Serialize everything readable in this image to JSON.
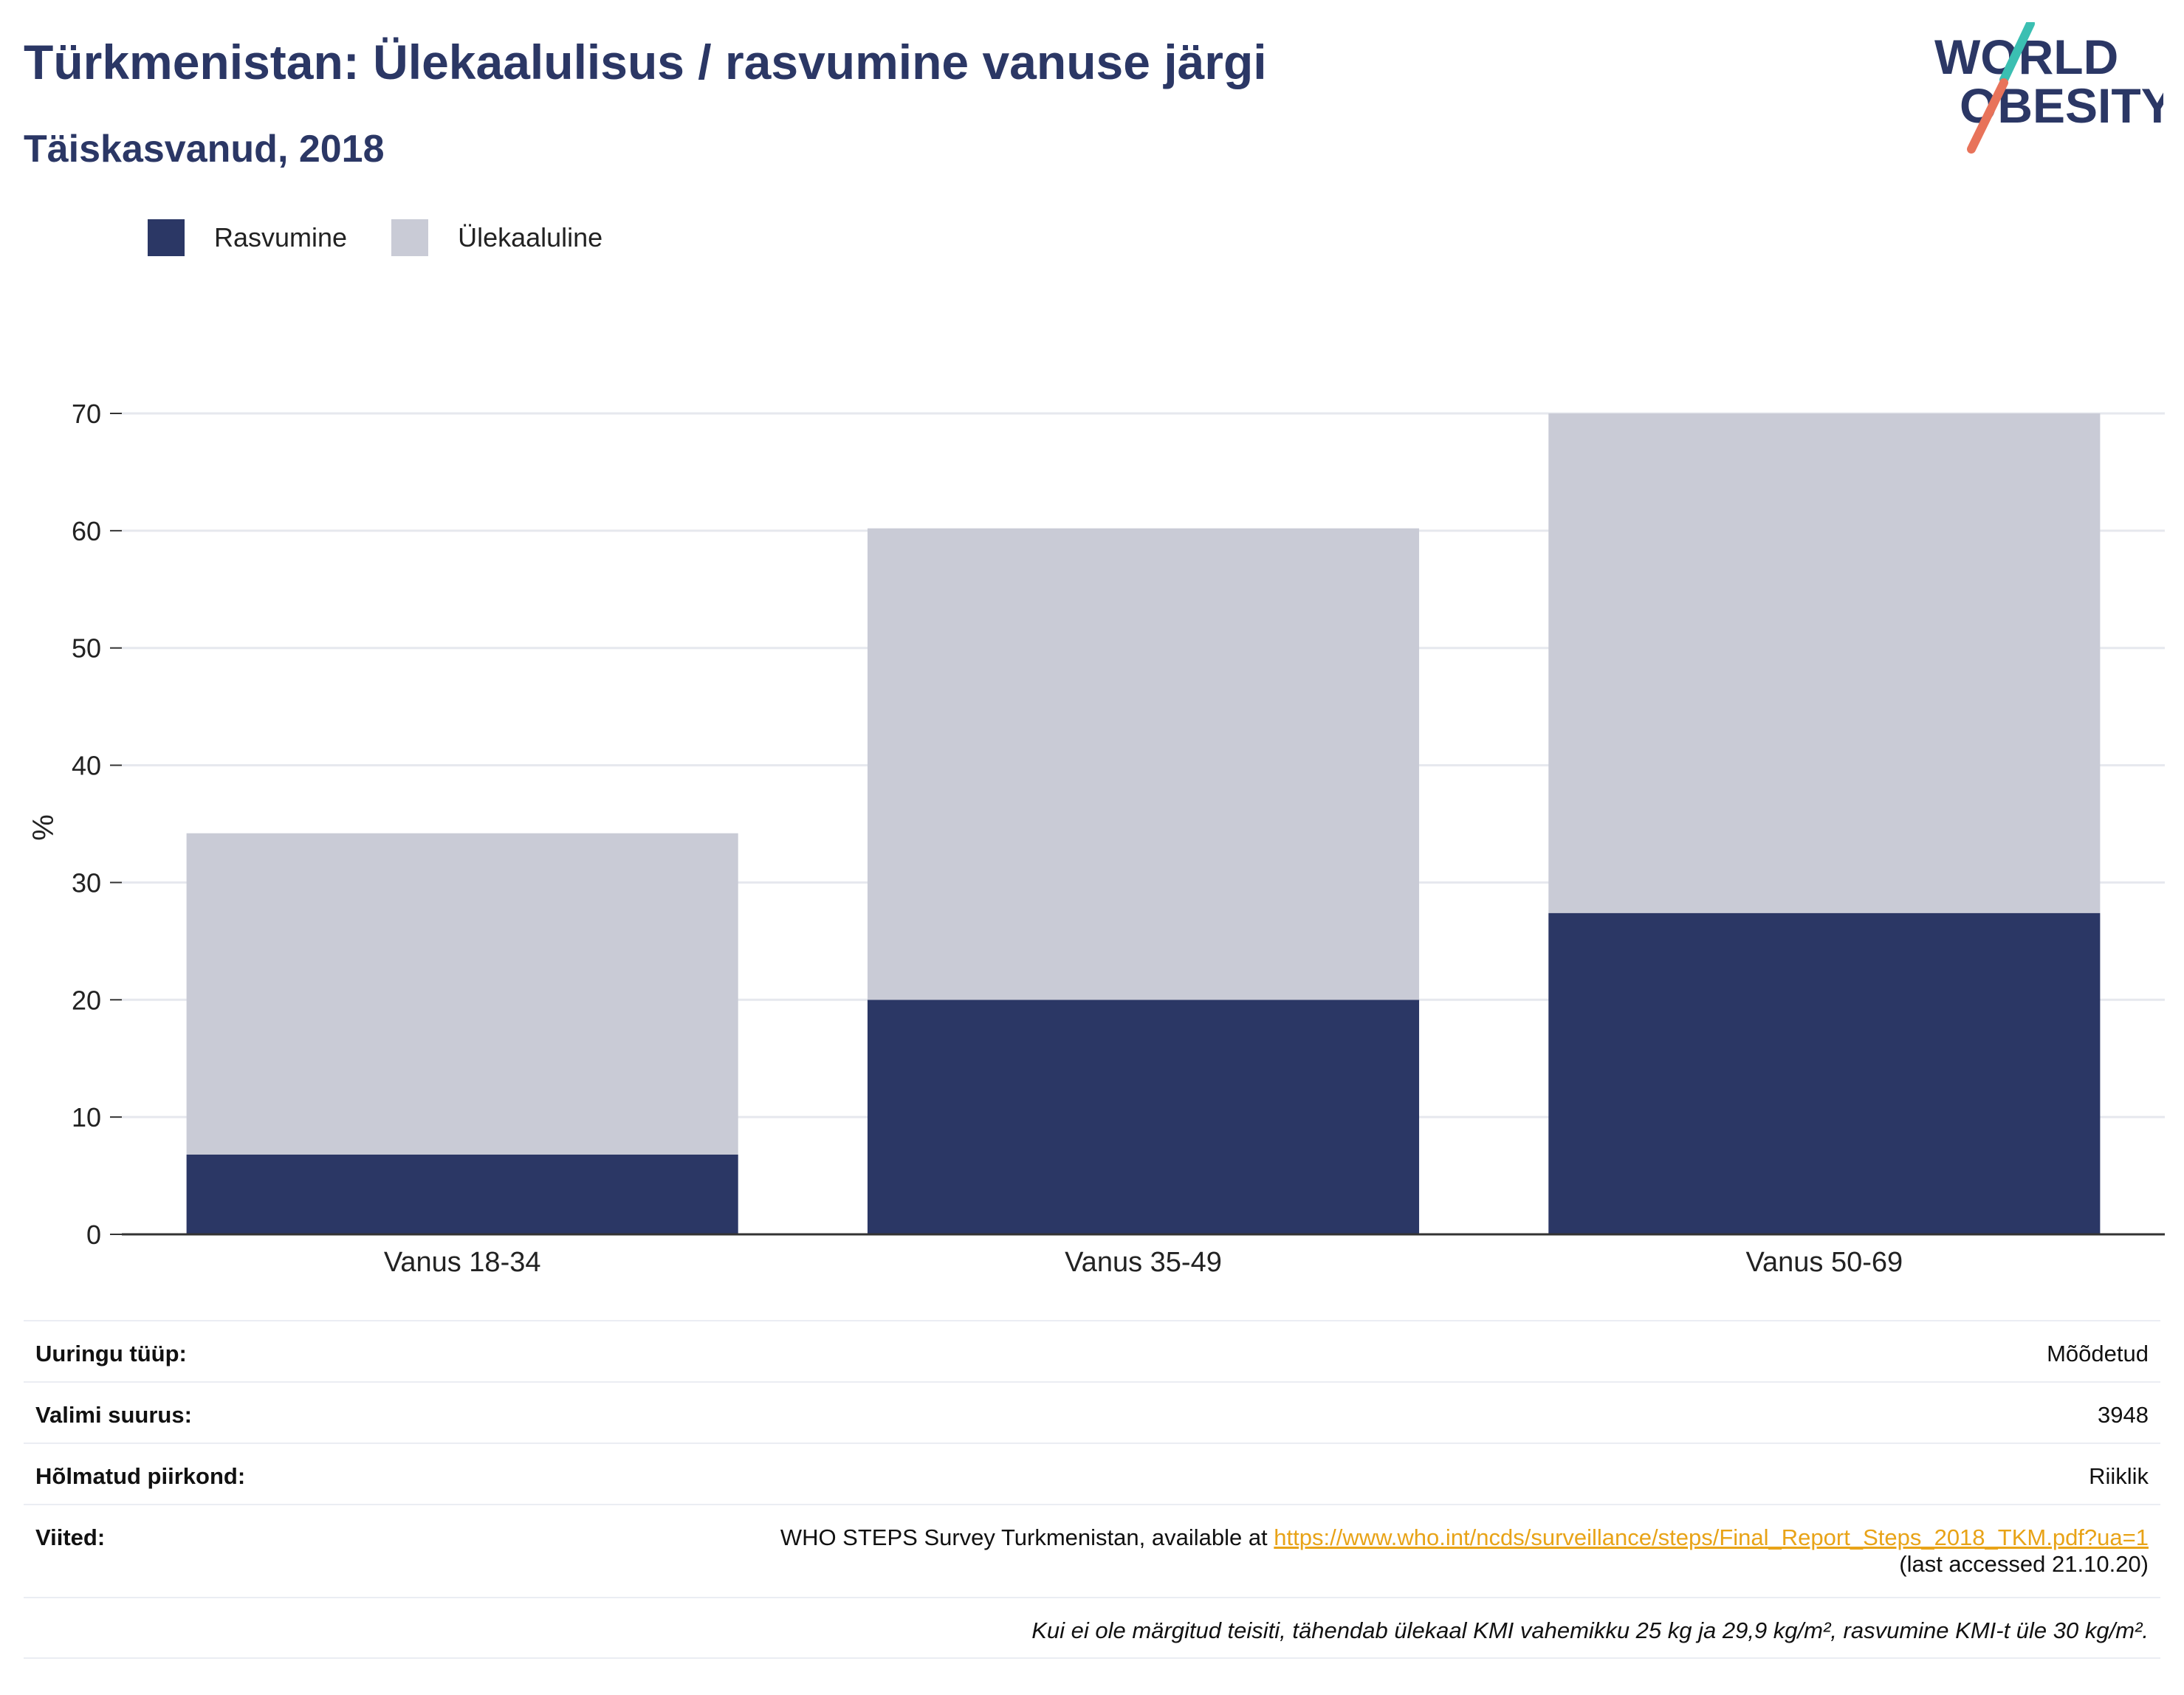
{
  "header": {
    "title": "Türkmenistan: Ülekaalulisus / rasvumine vanuse järgi",
    "subtitle": "Täiskasvanud, 2018"
  },
  "logo": {
    "line1": "WORLD",
    "line2": "OBESITY",
    "accent_top": "#3bbfb2",
    "accent_bottom": "#e8735a"
  },
  "colors": {
    "obesity": "#2b3765",
    "overweight": "#c9cbd6",
    "text": "#2b3765",
    "link": "#e8a317"
  },
  "chart_data": {
    "type": "bar",
    "stacked": true,
    "categories": [
      "Vanus 18-34",
      "Vanus 35-49",
      "Vanus 50-69"
    ],
    "series": [
      {
        "name": "Rasvumine",
        "values": [
          6.8,
          20.0,
          27.4
        ]
      },
      {
        "name": "Ülekaaluline",
        "values": [
          27.4,
          40.2,
          42.6
        ]
      }
    ],
    "ylabel": "%",
    "ylim": [
      0,
      70
    ],
    "yticks": [
      0,
      10,
      20,
      30,
      40,
      50,
      60,
      70
    ],
    "grid": true,
    "legend_position": "top-left"
  },
  "meta": {
    "survey_type_label": "Uuringu tüüp:",
    "survey_type_value": "Mõõdetud",
    "sample_size_label": "Valimi suurus:",
    "sample_size_value": "3948",
    "region_label": "Hõlmatud piirkond:",
    "region_value": "Riiklik",
    "references_label": "Viited:",
    "references_text": "WHO STEPS Survey Turkmenistan, available at",
    "references_link": "https://www.who.int/ncds/surveillance/steps/Final_Report_Steps_2018_TKM.pdf?ua=1",
    "references_accessed": "(last accessed 21.10.20)",
    "note": "Kui ei ole märgitud teisiti, tähendab ülekaal KMI vahemikku 25 kg ja 29,9 kg/m², rasvumine KMI-t üle 30 kg/m²."
  }
}
